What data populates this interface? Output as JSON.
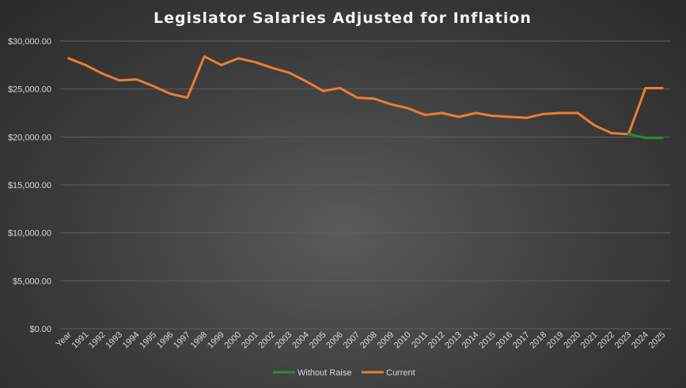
{
  "chart_data": {
    "type": "line",
    "title": "Legislator Salaries Adjusted for Inflation",
    "xlabel": "",
    "ylabel": "",
    "ylim": [
      0,
      30000
    ],
    "yticks": [
      "$0.00",
      "$5,000.00",
      "$10,000.00",
      "$15,000.00",
      "$20,000.00",
      "$25,000.00",
      "$30,000.00"
    ],
    "categories": [
      "Year",
      "1991",
      "1992",
      "1993",
      "1994",
      "1995",
      "1996",
      "1997",
      "1998",
      "1999",
      "2000",
      "2001",
      "2002",
      "2003",
      "2004",
      "2005",
      "2006",
      "2007",
      "2008",
      "2009",
      "2010",
      "2011",
      "2012",
      "2013",
      "2014",
      "2015",
      "2016",
      "2017",
      "2018",
      "2019",
      "2020",
      "2021",
      "2022",
      "2023",
      "2024",
      "2025"
    ],
    "series": [
      {
        "name": "Without Raise",
        "color": "#2e8b2e",
        "values": [
          null,
          null,
          null,
          null,
          null,
          null,
          null,
          null,
          null,
          null,
          null,
          null,
          null,
          null,
          null,
          null,
          null,
          null,
          null,
          null,
          null,
          null,
          null,
          null,
          null,
          null,
          null,
          null,
          null,
          null,
          null,
          null,
          null,
          20300,
          19900,
          19900
        ]
      },
      {
        "name": "Current",
        "color": "#ed7d31",
        "values": [
          28200,
          27500,
          26600,
          25900,
          26000,
          25300,
          24500,
          24100,
          28400,
          27500,
          28200,
          27800,
          27200,
          26700,
          25800,
          24800,
          25100,
          24100,
          24000,
          23400,
          23000,
          22300,
          22500,
          22100,
          22500,
          22200,
          22100,
          22000,
          22400,
          22500,
          22500,
          21200,
          20400,
          20300,
          25100,
          25100
        ]
      }
    ],
    "legend": "bottom"
  }
}
